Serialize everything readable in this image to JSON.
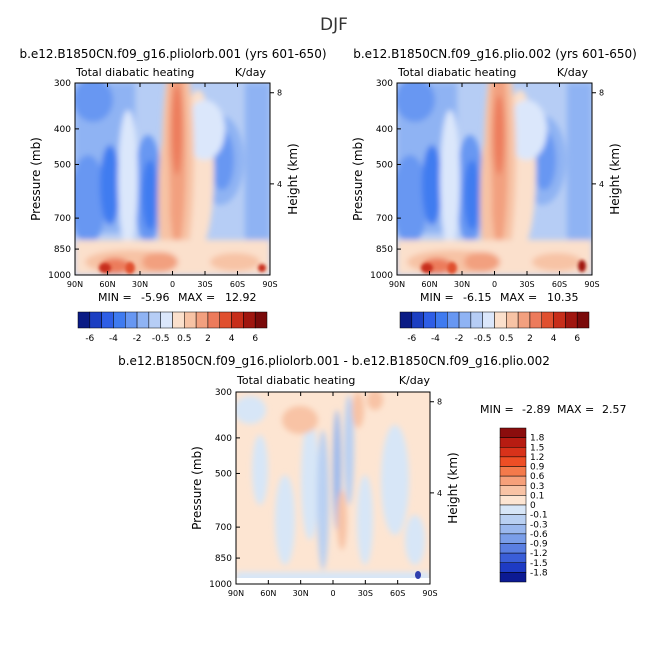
{
  "figure": {
    "title": "DJF",
    "colorbar_ticks": [
      "-6",
      "-4",
      "-2",
      "-0.5",
      "0.5",
      "2",
      "4",
      "6"
    ],
    "colorbar_colors": [
      "#0a1b85",
      "#1c3fc2",
      "#2e5ee6",
      "#3f7bf0",
      "#6797f2",
      "#8fb3f3",
      "#b6cdf5",
      "#dbe7fb",
      "#fbe0cc",
      "#f7c3a5",
      "#f2a07f",
      "#ec7b5c",
      "#e0502f",
      "#c72e1a",
      "#a0160f",
      "#7a0a0a"
    ],
    "diff_colorbar_labels": [
      "1.8",
      "1.5",
      "1.2",
      "0.9",
      "0.6",
      "0.3",
      "0.1",
      "0",
      "-0.1",
      "-0.3",
      "-0.6",
      "-0.9",
      "-1.2",
      "-1.5",
      "-1.8"
    ],
    "diff_colorbar_colors": [
      "#8b0d0d",
      "#b71c12",
      "#d8321a",
      "#ee4e25",
      "#f47a4b",
      "#f6a07a",
      "#f8c3a5",
      "#fde5d2",
      "#d7e6f7",
      "#b9d0f2",
      "#9ab8ee",
      "#7a9ee9",
      "#5a7fe2",
      "#3a5ed8",
      "#1e3bc4",
      "#0c1a93"
    ]
  },
  "panels": [
    {
      "title": "b.e12.B1850CN.f09_g16.pliolorb.001 (yrs 601-650)",
      "variable": "Total diabatic heating",
      "units": "K/day",
      "stats": {
        "min_label": "MIN = ",
        "min": "-5.96",
        "max_label": "MAX = ",
        "max": "12.92"
      }
    },
    {
      "title": "b.e12.B1850CN.f09_g16.plio.002 (yrs 601-650)",
      "variable": "Total diabatic heating",
      "units": "K/day",
      "stats": {
        "min_label": "MIN = ",
        "min": "-6.15",
        "max_label": "MAX = ",
        "max": "10.35"
      }
    },
    {
      "title": "b.e12.B1850CN.f09_g16.pliolorb.001 - b.e12.B1850CN.f09_g16.plio.002",
      "variable": "Total diabatic heating",
      "units": "K/day",
      "stats": {
        "min_label": "MIN = ",
        "min": "-2.89",
        "max_label": "MAX = ",
        "max": "2.57"
      }
    }
  ],
  "chart_data": [
    {
      "type": "heatmap",
      "title": "b.e12.B1850CN.f09_g16.pliolorb.001 (yrs 601-650)",
      "variable": "Total diabatic heating",
      "units": "K/day",
      "xlabel": "",
      "ylabel": "Pressure (mb)",
      "y2label": "Height (km)",
      "x_ticks": [
        "90N",
        "60N",
        "30N",
        "0",
        "30S",
        "60S",
        "90S"
      ],
      "y_ticks": [
        "300",
        "400",
        "500",
        "700",
        "850",
        "1000"
      ],
      "y2_ticks": [
        "4",
        "8"
      ],
      "xlim": [
        90,
        -90
      ],
      "ylim": [
        1000,
        300
      ],
      "min": -5.96,
      "max": 12.92,
      "color_levels": [
        -6,
        -4,
        -2,
        -0.5,
        0.5,
        2,
        4,
        6
      ]
    },
    {
      "type": "heatmap",
      "title": "b.e12.B1850CN.f09_g16.plio.002 (yrs 601-650)",
      "variable": "Total diabatic heating",
      "units": "K/day",
      "xlabel": "",
      "ylabel": "Pressure (mb)",
      "y2label": "Height (km)",
      "x_ticks": [
        "90N",
        "60N",
        "30N",
        "0",
        "30S",
        "60S",
        "90S"
      ],
      "y_ticks": [
        "300",
        "400",
        "500",
        "700",
        "850",
        "1000"
      ],
      "y2_ticks": [
        "4",
        "8"
      ],
      "xlim": [
        90,
        -90
      ],
      "ylim": [
        1000,
        300
      ],
      "min": -6.15,
      "max": 10.35,
      "color_levels": [
        -6,
        -4,
        -2,
        -0.5,
        0.5,
        2,
        4,
        6
      ]
    },
    {
      "type": "heatmap",
      "title": "b.e12.B1850CN.f09_g16.pliolorb.001 - b.e12.B1850CN.f09_g16.plio.002",
      "variable": "Total diabatic heating",
      "units": "K/day",
      "xlabel": "",
      "ylabel": "Pressure (mb)",
      "y2label": "Height (km)",
      "x_ticks": [
        "90N",
        "60N",
        "30N",
        "0",
        "30S",
        "60S",
        "90S"
      ],
      "y_ticks": [
        "300",
        "400",
        "500",
        "700",
        "850",
        "1000"
      ],
      "y2_ticks": [
        "4",
        "8"
      ],
      "xlim": [
        90,
        -90
      ],
      "ylim": [
        1000,
        300
      ],
      "min": -2.89,
      "max": 2.57,
      "color_levels": [
        -1.8,
        -1.5,
        -1.2,
        -0.9,
        -0.6,
        -0.3,
        -0.1,
        0,
        0.1,
        0.3,
        0.6,
        0.9,
        1.2,
        1.5,
        1.8
      ]
    }
  ]
}
